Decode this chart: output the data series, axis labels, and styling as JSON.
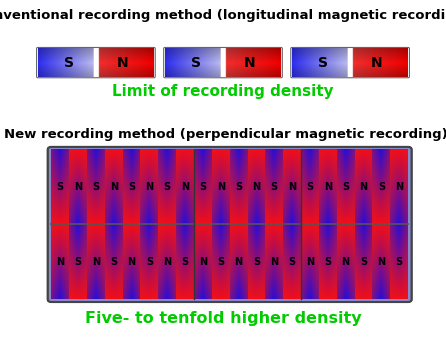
{
  "title1": "Conventional recording method (longitudinal magnetic recording)",
  "title2": "New recording method (perpendicular magnetic recording)",
  "label1": "Limit of recording density",
  "label2": "Five- to tenfold higher density",
  "bg_color": "#ffffff",
  "green_color": "#00cc00",
  "fig_w": 4.46,
  "fig_h": 3.44,
  "dpi": 100
}
